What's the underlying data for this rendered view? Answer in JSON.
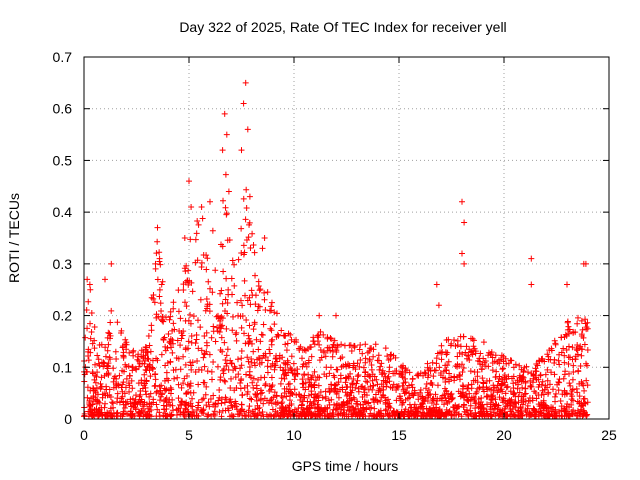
{
  "chart_data": {
    "type": "scatter",
    "title": "Day 322 of 2025, Rate Of TEC Index for receiver yell",
    "xlabel": "GPS time / hours",
    "ylabel": "ROTI / TECUs",
    "xlim": [
      0,
      25
    ],
    "ylim": [
      0,
      0.7
    ],
    "xticks": [
      0,
      5,
      10,
      15,
      20,
      25
    ],
    "xtick_labels": [
      "0",
      "5",
      "10",
      "15",
      "20",
      "25"
    ],
    "yticks": [
      0,
      0.1,
      0.2,
      0.3,
      0.4,
      0.5,
      0.6,
      0.7
    ],
    "ytick_labels": [
      "0",
      "0.1",
      "0.2",
      "0.3",
      "0.4",
      "0.5",
      "0.6",
      "0.7"
    ],
    "grid": true,
    "marker": "+",
    "marker_color": "#ff0000",
    "series": [
      {
        "name": "ROTI",
        "envelope": [
          {
            "x": 0.0,
            "y": 0.16
          },
          {
            "x": 0.25,
            "y": 0.27
          },
          {
            "x": 0.6,
            "y": 0.15
          },
          {
            "x": 1.0,
            "y": 0.14
          },
          {
            "x": 1.3,
            "y": 0.22
          },
          {
            "x": 1.7,
            "y": 0.18
          },
          {
            "x": 2.2,
            "y": 0.13
          },
          {
            "x": 3.0,
            "y": 0.14
          },
          {
            "x": 3.5,
            "y": 0.35
          },
          {
            "x": 4.0,
            "y": 0.2
          },
          {
            "x": 4.6,
            "y": 0.26
          },
          {
            "x": 5.0,
            "y": 0.34
          },
          {
            "x": 5.5,
            "y": 0.4
          },
          {
            "x": 6.0,
            "y": 0.36
          },
          {
            "x": 6.5,
            "y": 0.38
          },
          {
            "x": 6.8,
            "y": 0.5
          },
          {
            "x": 7.2,
            "y": 0.32
          },
          {
            "x": 7.7,
            "y": 0.45
          },
          {
            "x": 8.2,
            "y": 0.3
          },
          {
            "x": 9.0,
            "y": 0.22
          },
          {
            "x": 9.6,
            "y": 0.17
          },
          {
            "x": 10.5,
            "y": 0.14
          },
          {
            "x": 11.2,
            "y": 0.17
          },
          {
            "x": 12.0,
            "y": 0.15
          },
          {
            "x": 13.0,
            "y": 0.14
          },
          {
            "x": 14.0,
            "y": 0.16
          },
          {
            "x": 15.0,
            "y": 0.12
          },
          {
            "x": 15.5,
            "y": 0.09
          },
          {
            "x": 16.5,
            "y": 0.11
          },
          {
            "x": 17.0,
            "y": 0.15
          },
          {
            "x": 18.0,
            "y": 0.16
          },
          {
            "x": 19.0,
            "y": 0.15
          },
          {
            "x": 20.0,
            "y": 0.12
          },
          {
            "x": 21.0,
            "y": 0.1
          },
          {
            "x": 22.0,
            "y": 0.12
          },
          {
            "x": 22.7,
            "y": 0.18
          },
          {
            "x": 23.5,
            "y": 0.2
          },
          {
            "x": 24.0,
            "y": 0.19
          }
        ],
        "peaks": [
          {
            "x": 0.15,
            "y": 0.27
          },
          {
            "x": 0.3,
            "y": 0.25
          },
          {
            "x": 1.0,
            "y": 0.27
          },
          {
            "x": 1.3,
            "y": 0.3
          },
          {
            "x": 3.5,
            "y": 0.37
          },
          {
            "x": 3.6,
            "y": 0.31
          },
          {
            "x": 3.7,
            "y": 0.26
          },
          {
            "x": 4.8,
            "y": 0.35
          },
          {
            "x": 5.0,
            "y": 0.46
          },
          {
            "x": 5.1,
            "y": 0.41
          },
          {
            "x": 5.6,
            "y": 0.41
          },
          {
            "x": 6.0,
            "y": 0.42
          },
          {
            "x": 6.6,
            "y": 0.52
          },
          {
            "x": 6.7,
            "y": 0.59
          },
          {
            "x": 6.8,
            "y": 0.55
          },
          {
            "x": 6.9,
            "y": 0.44
          },
          {
            "x": 7.5,
            "y": 0.52
          },
          {
            "x": 7.6,
            "y": 0.61
          },
          {
            "x": 7.7,
            "y": 0.65
          },
          {
            "x": 7.8,
            "y": 0.56
          },
          {
            "x": 7.9,
            "y": 0.43
          },
          {
            "x": 8.5,
            "y": 0.33
          },
          {
            "x": 8.6,
            "y": 0.35
          },
          {
            "x": 11.2,
            "y": 0.2
          },
          {
            "x": 12.0,
            "y": 0.2
          },
          {
            "x": 16.8,
            "y": 0.26
          },
          {
            "x": 16.9,
            "y": 0.22
          },
          {
            "x": 18.0,
            "y": 0.42
          },
          {
            "x": 18.1,
            "y": 0.38
          },
          {
            "x": 18.0,
            "y": 0.32
          },
          {
            "x": 18.1,
            "y": 0.3
          },
          {
            "x": 21.3,
            "y": 0.31
          },
          {
            "x": 21.3,
            "y": 0.26
          },
          {
            "x": 23.0,
            "y": 0.26
          },
          {
            "x": 23.8,
            "y": 0.3
          },
          {
            "x": 23.9,
            "y": 0.3
          }
        ]
      }
    ]
  }
}
